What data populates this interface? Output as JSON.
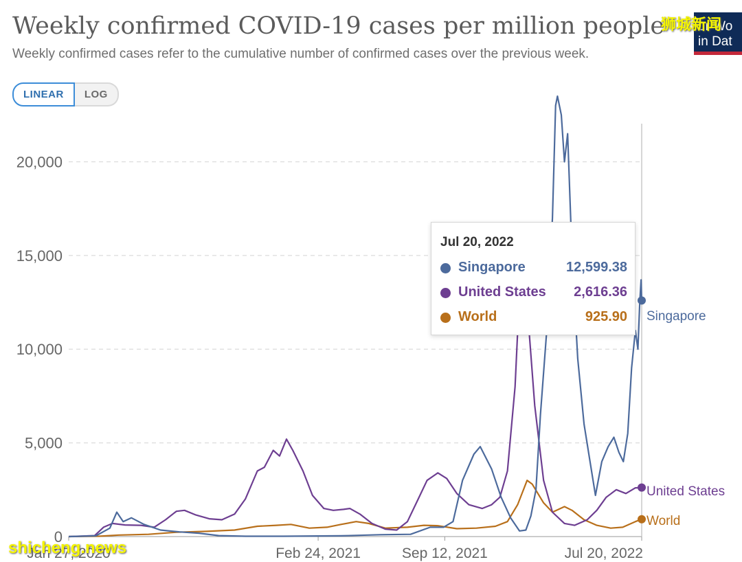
{
  "header": {
    "title": "Weekly confirmed COVID-19 cases per million people",
    "subtitle": "Weekly confirmed cases refer to the cumulative number of confirmed cases over the previous week."
  },
  "scale_toggle": {
    "linear_label": "LINEAR",
    "log_label": "LOG",
    "active": "LINEAR"
  },
  "logo": {
    "line1": "ur Wo",
    "line2": "in Dat"
  },
  "watermarks": {
    "top": "狮城新闻",
    "bottom": "shicheng.news"
  },
  "tooltip": {
    "date": "Jul 20, 2022",
    "rows": [
      {
        "name": "Singapore",
        "value": "12,599.38",
        "color": "#4c6a9c"
      },
      {
        "name": "United States",
        "value": "2,616.36",
        "color": "#6d3e91"
      },
      {
        "name": "World",
        "value": "925.90",
        "color": "#b86f1a"
      }
    ]
  },
  "chart_data": {
    "type": "line",
    "title": "Weekly confirmed COVID-19 cases per million people",
    "xlabel": "",
    "ylabel": "",
    "x_range": [
      "2020-01-27",
      "2022-07-20"
    ],
    "x_ticks": [
      "Jan 27, 2020",
      "Feb 24, 2021",
      "Sep 12, 2021",
      "Jul 20, 2022"
    ],
    "y_ticks": [
      0,
      5000,
      10000,
      15000,
      20000
    ],
    "y_tick_labels": [
      "0",
      "5,000",
      "10,000",
      "15,000",
      "20,000"
    ],
    "ylim": [
      0,
      23500
    ],
    "grid": "horizontal dashed",
    "legend": "line-end labels",
    "series": [
      {
        "name": "Singapore",
        "color": "#4c6a9c",
        "points": [
          [
            "2020-01-27",
            0
          ],
          [
            "2020-03-10",
            40
          ],
          [
            "2020-04-01",
            450
          ],
          [
            "2020-04-12",
            1300
          ],
          [
            "2020-04-22",
            800
          ],
          [
            "2020-05-05",
            1000
          ],
          [
            "2020-05-25",
            650
          ],
          [
            "2020-06-20",
            350
          ],
          [
            "2020-07-20",
            250
          ],
          [
            "2020-08-20",
            180
          ],
          [
            "2020-09-20",
            50
          ],
          [
            "2020-11-01",
            20
          ],
          [
            "2021-01-01",
            20
          ],
          [
            "2021-04-01",
            40
          ],
          [
            "2021-06-01",
            100
          ],
          [
            "2021-07-20",
            120
          ],
          [
            "2021-08-20",
            500
          ],
          [
            "2021-09-10",
            500
          ],
          [
            "2021-09-25",
            800
          ],
          [
            "2021-10-10",
            3000
          ],
          [
            "2021-10-28",
            4400
          ],
          [
            "2021-11-07",
            4800
          ],
          [
            "2021-11-25",
            3600
          ],
          [
            "2021-12-10",
            2100
          ],
          [
            "2021-12-25",
            1000
          ],
          [
            "2022-01-08",
            300
          ],
          [
            "2022-01-18",
            350
          ],
          [
            "2022-01-26",
            1100
          ],
          [
            "2022-02-03",
            2500
          ],
          [
            "2022-02-10",
            6500
          ],
          [
            "2022-02-20",
            11000
          ],
          [
            "2022-03-01",
            17000
          ],
          [
            "2022-03-06",
            23000
          ],
          [
            "2022-03-09",
            23500
          ],
          [
            "2022-03-15",
            22500
          ],
          [
            "2022-03-20",
            20000
          ],
          [
            "2022-03-25",
            21500
          ],
          [
            "2022-04-01",
            15000
          ],
          [
            "2022-04-10",
            9500
          ],
          [
            "2022-04-20",
            6000
          ],
          [
            "2022-04-28",
            4300
          ],
          [
            "2022-05-08",
            2200
          ],
          [
            "2022-05-18",
            4000
          ],
          [
            "2022-05-28",
            4800
          ],
          [
            "2022-06-06",
            5300
          ],
          [
            "2022-06-14",
            4500
          ],
          [
            "2022-06-21",
            4000
          ],
          [
            "2022-06-28",
            5500
          ],
          [
            "2022-07-04",
            9000
          ],
          [
            "2022-07-10",
            11000
          ],
          [
            "2022-07-14",
            10000
          ],
          [
            "2022-07-17",
            12500
          ],
          [
            "2022-07-19",
            13700
          ],
          [
            "2022-07-20",
            12599.38
          ]
        ]
      },
      {
        "name": "United States",
        "color": "#6d3e91",
        "points": [
          [
            "2020-01-27",
            0
          ],
          [
            "2020-03-08",
            50
          ],
          [
            "2020-03-22",
            500
          ],
          [
            "2020-04-05",
            700
          ],
          [
            "2020-04-25",
            620
          ],
          [
            "2020-05-20",
            600
          ],
          [
            "2020-06-10",
            500
          ],
          [
            "2020-06-28",
            900
          ],
          [
            "2020-07-15",
            1350
          ],
          [
            "2020-07-28",
            1400
          ],
          [
            "2020-08-15",
            1150
          ],
          [
            "2020-09-05",
            950
          ],
          [
            "2020-09-25",
            900
          ],
          [
            "2020-10-15",
            1200
          ],
          [
            "2020-11-01",
            2000
          ],
          [
            "2020-11-20",
            3500
          ],
          [
            "2020-12-01",
            3700
          ],
          [
            "2020-12-15",
            4600
          ],
          [
            "2020-12-25",
            4300
          ],
          [
            "2021-01-05",
            5200
          ],
          [
            "2021-01-15",
            4600
          ],
          [
            "2021-01-31",
            3500
          ],
          [
            "2021-02-15",
            2200
          ],
          [
            "2021-03-05",
            1500
          ],
          [
            "2021-03-20",
            1400
          ],
          [
            "2021-04-05",
            1450
          ],
          [
            "2021-04-15",
            1500
          ],
          [
            "2021-05-01",
            1200
          ],
          [
            "2021-05-20",
            700
          ],
          [
            "2021-06-10",
            400
          ],
          [
            "2021-06-28",
            350
          ],
          [
            "2021-07-15",
            800
          ],
          [
            "2021-08-01",
            2000
          ],
          [
            "2021-08-15",
            3000
          ],
          [
            "2021-09-01",
            3400
          ],
          [
            "2021-09-15",
            3100
          ],
          [
            "2021-10-01",
            2300
          ],
          [
            "2021-10-20",
            1700
          ],
          [
            "2021-11-10",
            1500
          ],
          [
            "2021-11-25",
            1700
          ],
          [
            "2021-12-08",
            2100
          ],
          [
            "2021-12-20",
            3500
          ],
          [
            "2022-01-01",
            8000
          ],
          [
            "2022-01-10",
            14500
          ],
          [
            "2022-01-15",
            16500
          ],
          [
            "2022-01-22",
            11500
          ],
          [
            "2022-02-01",
            7000
          ],
          [
            "2022-02-15",
            3000
          ],
          [
            "2022-03-01",
            1300
          ],
          [
            "2022-03-20",
            700
          ],
          [
            "2022-04-05",
            600
          ],
          [
            "2022-04-25",
            900
          ],
          [
            "2022-05-10",
            1400
          ],
          [
            "2022-05-25",
            2100
          ],
          [
            "2022-06-10",
            2500
          ],
          [
            "2022-06-25",
            2300
          ],
          [
            "2022-07-10",
            2600
          ],
          [
            "2022-07-20",
            2616.36
          ]
        ]
      },
      {
        "name": "World",
        "color": "#b86f1a",
        "points": [
          [
            "2020-01-27",
            0
          ],
          [
            "2020-03-15",
            20
          ],
          [
            "2020-04-15",
            80
          ],
          [
            "2020-06-01",
            120
          ],
          [
            "2020-07-15",
            230
          ],
          [
            "2020-09-01",
            280
          ],
          [
            "2020-10-15",
            350
          ],
          [
            "2020-11-20",
            550
          ],
          [
            "2020-12-20",
            600
          ],
          [
            "2021-01-12",
            650
          ],
          [
            "2021-02-10",
            450
          ],
          [
            "2021-03-10",
            500
          ],
          [
            "2021-04-01",
            650
          ],
          [
            "2021-04-25",
            800
          ],
          [
            "2021-05-15",
            700
          ],
          [
            "2021-06-10",
            450
          ],
          [
            "2021-07-15",
            500
          ],
          [
            "2021-08-10",
            600
          ],
          [
            "2021-09-01",
            580
          ],
          [
            "2021-10-01",
            420
          ],
          [
            "2021-11-01",
            450
          ],
          [
            "2021-12-01",
            550
          ],
          [
            "2021-12-20",
            800
          ],
          [
            "2022-01-05",
            1700
          ],
          [
            "2022-01-20",
            3000
          ],
          [
            "2022-01-28",
            2800
          ],
          [
            "2022-02-15",
            1800
          ],
          [
            "2022-03-01",
            1300
          ],
          [
            "2022-03-20",
            1600
          ],
          [
            "2022-04-01",
            1400
          ],
          [
            "2022-04-20",
            900
          ],
          [
            "2022-05-10",
            600
          ],
          [
            "2022-06-01",
            450
          ],
          [
            "2022-06-20",
            500
          ],
          [
            "2022-07-10",
            800
          ],
          [
            "2022-07-20",
            925.9
          ]
        ]
      }
    ]
  }
}
